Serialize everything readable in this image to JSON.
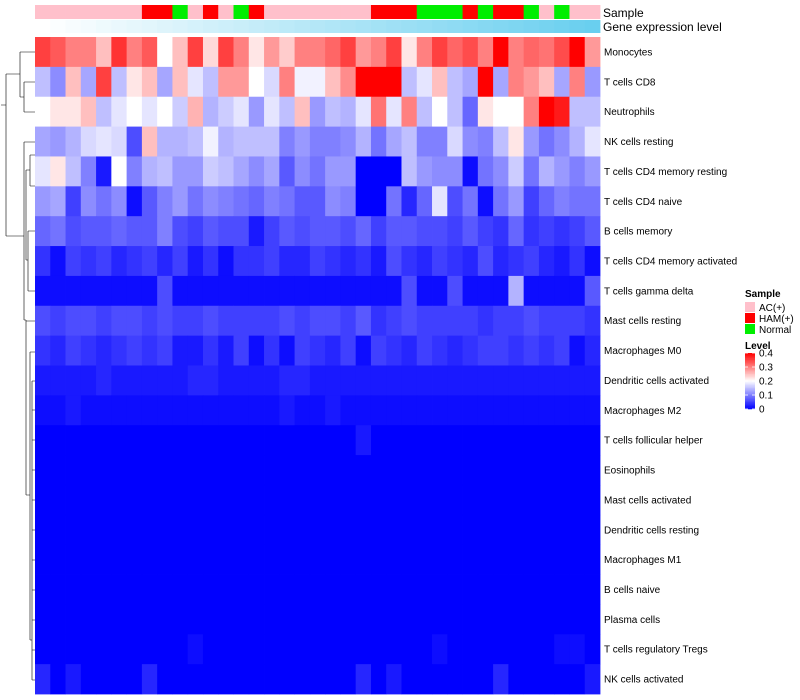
{
  "chart_data": {
    "type": "heatmap",
    "annotation_tracks": [
      "Sample",
      "Gene expression level"
    ],
    "samples": [
      "AC(+)",
      "AC(+)",
      "AC(+)",
      "AC(+)",
      "AC(+)",
      "AC(+)",
      "AC(+)",
      "HAM(+)",
      "HAM(+)",
      "Normal",
      "AC(+)",
      "HAM(+)",
      "AC(+)",
      "Normal",
      "HAM(+)",
      "AC(+)",
      "AC(+)",
      "AC(+)",
      "AC(+)",
      "AC(+)",
      "AC(+)",
      "AC(+)",
      "HAM(+)",
      "HAM(+)",
      "HAM(+)",
      "Normal",
      "Normal",
      "Normal",
      "HAM(+)",
      "Normal",
      "HAM(+)",
      "HAM(+)",
      "Normal",
      "AC(+)",
      "Normal",
      "AC(+)",
      "AC(+)"
    ],
    "rows": [
      "Monocytes",
      "T cells CD8",
      "Neutrophils",
      "NK cells resting",
      "T cells CD4 memory resting",
      "T cells CD4 naive",
      "B cells memory",
      "T cells CD4 memory activated",
      "T cells gamma delta",
      "Mast cells resting",
      "Macrophages M0",
      "Dendritic cells activated",
      "Macrophages M2",
      "T cells follicular helper",
      "Eosinophils",
      "Mast cells activated",
      "Dendritic cells resting",
      "Macrophages M1",
      "B cells naive",
      "Plasma cells",
      "T cells regulatory  Tregs",
      "NK cells activated"
    ],
    "values": [
      [
        0.35,
        0.33,
        0.3,
        0.3,
        0.25,
        0.36,
        0.3,
        0.33,
        0.2,
        0.25,
        0.35,
        0.23,
        0.35,
        0.3,
        0.22,
        0.28,
        0.24,
        0.3,
        0.3,
        0.32,
        0.35,
        0.28,
        0.3,
        0.35,
        0.22,
        0.3,
        0.35,
        0.32,
        0.34,
        0.3,
        0.4,
        0.3,
        0.32,
        0.31,
        0.34,
        0.4,
        0.28
      ],
      [
        0.15,
        0.11,
        0.25,
        0.13,
        0.35,
        0.15,
        0.22,
        0.25,
        0.13,
        0.25,
        0.18,
        0.15,
        0.28,
        0.28,
        0.2,
        0.17,
        0.3,
        0.19,
        0.19,
        0.25,
        0.29,
        0.4,
        0.4,
        0.4,
        0.15,
        0.18,
        0.25,
        0.15,
        0.13,
        0.4,
        0.13,
        0.3,
        0.28,
        0.25,
        0.13,
        0.3,
        0.12
      ],
      [
        0.2,
        0.22,
        0.22,
        0.25,
        0.15,
        0.18,
        0.2,
        0.18,
        0.2,
        0.16,
        0.26,
        0.14,
        0.16,
        0.18,
        0.12,
        0.18,
        0.15,
        0.25,
        0.12,
        0.15,
        0.14,
        0.18,
        0.31,
        0.18,
        0.3,
        0.15,
        0.2,
        0.15,
        0.08,
        0.22,
        0.2,
        0.2,
        0.3,
        0.4,
        0.38,
        0.15,
        0.15
      ],
      [
        0.13,
        0.12,
        0.14,
        0.17,
        0.18,
        0.17,
        0.06,
        0.25,
        0.14,
        0.14,
        0.15,
        0.19,
        0.14,
        0.15,
        0.15,
        0.15,
        0.1,
        0.12,
        0.1,
        0.1,
        0.11,
        0.14,
        0.09,
        0.13,
        0.15,
        0.1,
        0.1,
        0.17,
        0.11,
        0.1,
        0.15,
        0.22,
        0.12,
        0.09,
        0.11,
        0.14,
        0.18
      ],
      [
        0.18,
        0.22,
        0.15,
        0.1,
        0.02,
        0.2,
        0.1,
        0.14,
        0.15,
        0.12,
        0.12,
        0.16,
        0.15,
        0.13,
        0.11,
        0.13,
        0.07,
        0.11,
        0.09,
        0.12,
        0.12,
        0.0,
        0.0,
        0.0,
        0.15,
        0.12,
        0.11,
        0.11,
        0.01,
        0.09,
        0.11,
        0.16,
        0.09,
        0.14,
        0.12,
        0.1,
        0.12
      ],
      [
        0.12,
        0.13,
        0.05,
        0.11,
        0.09,
        0.11,
        0.01,
        0.07,
        0.1,
        0.12,
        0.09,
        0.11,
        0.1,
        0.09,
        0.08,
        0.1,
        0.09,
        0.07,
        0.07,
        0.11,
        0.1,
        0.0,
        0.0,
        0.09,
        0.03,
        0.08,
        0.18,
        0.06,
        0.09,
        0.01,
        0.09,
        0.12,
        0.05,
        0.08,
        0.1,
        0.09,
        0.09
      ],
      [
        0.08,
        0.09,
        0.06,
        0.07,
        0.07,
        0.08,
        0.07,
        0.07,
        0.1,
        0.06,
        0.05,
        0.07,
        0.06,
        0.06,
        0.02,
        0.05,
        0.07,
        0.06,
        0.07,
        0.07,
        0.06,
        0.08,
        0.05,
        0.07,
        0.07,
        0.06,
        0.06,
        0.05,
        0.07,
        0.05,
        0.04,
        0.08,
        0.04,
        0.05,
        0.04,
        0.05,
        0.07
      ],
      [
        0.04,
        0.01,
        0.05,
        0.04,
        0.05,
        0.03,
        0.04,
        0.05,
        0.03,
        0.05,
        0.02,
        0.04,
        0.01,
        0.04,
        0.04,
        0.05,
        0.03,
        0.03,
        0.05,
        0.04,
        0.03,
        0.04,
        0.02,
        0.06,
        0.04,
        0.03,
        0.05,
        0.04,
        0.03,
        0.06,
        0.03,
        0.04,
        0.05,
        0.03,
        0.02,
        0.04,
        0.01
      ],
      [
        0.01,
        0.01,
        0.01,
        0.01,
        0.01,
        0.01,
        0.01,
        0.01,
        0.06,
        0.01,
        0.01,
        0.01,
        0.01,
        0.01,
        0.01,
        0.01,
        0.01,
        0.01,
        0.01,
        0.01,
        0.01,
        0.01,
        0.01,
        0.01,
        0.06,
        0.01,
        0.01,
        0.06,
        0.01,
        0.01,
        0.01,
        0.14,
        0.01,
        0.01,
        0.01,
        0.01,
        0.07
      ],
      [
        0.06,
        0.05,
        0.06,
        0.06,
        0.05,
        0.06,
        0.06,
        0.05,
        0.06,
        0.05,
        0.05,
        0.06,
        0.05,
        0.05,
        0.05,
        0.05,
        0.06,
        0.05,
        0.06,
        0.06,
        0.05,
        0.07,
        0.04,
        0.05,
        0.06,
        0.05,
        0.05,
        0.05,
        0.05,
        0.04,
        0.05,
        0.05,
        0.06,
        0.05,
        0.05,
        0.05,
        0.04
      ],
      [
        0.04,
        0.03,
        0.05,
        0.04,
        0.03,
        0.04,
        0.05,
        0.04,
        0.05,
        0.02,
        0.02,
        0.04,
        0.02,
        0.05,
        0.01,
        0.04,
        0.01,
        0.05,
        0.04,
        0.03,
        0.05,
        0.01,
        0.05,
        0.04,
        0.03,
        0.05,
        0.04,
        0.03,
        0.04,
        0.05,
        0.05,
        0.04,
        0.05,
        0.04,
        0.05,
        0.01,
        0.03
      ],
      [
        0.02,
        0.02,
        0.02,
        0.02,
        0.03,
        0.02,
        0.02,
        0.02,
        0.02,
        0.02,
        0.03,
        0.03,
        0.02,
        0.02,
        0.02,
        0.02,
        0.03,
        0.03,
        0.02,
        0.02,
        0.02,
        0.02,
        0.02,
        0.02,
        0.02,
        0.02,
        0.02,
        0.02,
        0.02,
        0.02,
        0.02,
        0.02,
        0.02,
        0.02,
        0.02,
        0.02,
        0.02
      ],
      [
        0.01,
        0.01,
        0.02,
        0.01,
        0.01,
        0.01,
        0.01,
        0.01,
        0.01,
        0.01,
        0.01,
        0.01,
        0.01,
        0.01,
        0.01,
        0.01,
        0.02,
        0.01,
        0.01,
        0.02,
        0.01,
        0.01,
        0.01,
        0.01,
        0.01,
        0.01,
        0.01,
        0.01,
        0.01,
        0.01,
        0.01,
        0.01,
        0.01,
        0.01,
        0.01,
        0.01,
        0.01
      ],
      [
        0.0,
        0.0,
        0.0,
        0.0,
        0.0,
        0.0,
        0.0,
        0.0,
        0.0,
        0.0,
        0.0,
        0.0,
        0.0,
        0.0,
        0.0,
        0.0,
        0.0,
        0.0,
        0.0,
        0.0,
        0.0,
        0.02,
        0.0,
        0.0,
        0.0,
        0.0,
        0.0,
        0.0,
        0.0,
        0.0,
        0.0,
        0.0,
        0.0,
        0.0,
        0.0,
        0.0,
        0.0
      ],
      [
        0.0,
        0.0,
        0.0,
        0.0,
        0.0,
        0.0,
        0.0,
        0.0,
        0.0,
        0.0,
        0.0,
        0.0,
        0.0,
        0.0,
        0.0,
        0.0,
        0.0,
        0.0,
        0.0,
        0.0,
        0.0,
        0.0,
        0.0,
        0.0,
        0.0,
        0.0,
        0.0,
        0.0,
        0.0,
        0.0,
        0.0,
        0.0,
        0.0,
        0.0,
        0.0,
        0.0,
        0.0
      ],
      [
        0.0,
        0.0,
        0.0,
        0.0,
        0.0,
        0.0,
        0.0,
        0.0,
        0.0,
        0.0,
        0.0,
        0.0,
        0.0,
        0.0,
        0.0,
        0.0,
        0.0,
        0.0,
        0.0,
        0.0,
        0.0,
        0.0,
        0.0,
        0.0,
        0.0,
        0.0,
        0.0,
        0.0,
        0.0,
        0.0,
        0.0,
        0.0,
        0.0,
        0.0,
        0.0,
        0.0,
        0.0
      ],
      [
        0.0,
        0.0,
        0.0,
        0.0,
        0.0,
        0.0,
        0.0,
        0.0,
        0.0,
        0.0,
        0.0,
        0.0,
        0.0,
        0.0,
        0.0,
        0.0,
        0.0,
        0.0,
        0.0,
        0.0,
        0.0,
        0.0,
        0.0,
        0.0,
        0.0,
        0.0,
        0.0,
        0.0,
        0.0,
        0.0,
        0.0,
        0.0,
        0.0,
        0.0,
        0.0,
        0.0,
        0.0
      ],
      [
        0.0,
        0.0,
        0.0,
        0.0,
        0.0,
        0.0,
        0.0,
        0.0,
        0.0,
        0.0,
        0.0,
        0.0,
        0.0,
        0.0,
        0.0,
        0.0,
        0.0,
        0.0,
        0.0,
        0.0,
        0.0,
        0.0,
        0.0,
        0.0,
        0.0,
        0.0,
        0.0,
        0.0,
        0.0,
        0.0,
        0.0,
        0.0,
        0.0,
        0.0,
        0.0,
        0.0,
        0.0
      ],
      [
        0.0,
        0.0,
        0.0,
        0.0,
        0.0,
        0.0,
        0.0,
        0.0,
        0.0,
        0.0,
        0.0,
        0.0,
        0.0,
        0.0,
        0.0,
        0.0,
        0.0,
        0.0,
        0.0,
        0.0,
        0.0,
        0.0,
        0.0,
        0.0,
        0.0,
        0.0,
        0.0,
        0.0,
        0.0,
        0.0,
        0.0,
        0.0,
        0.0,
        0.0,
        0.0,
        0.0,
        0.0
      ],
      [
        0.0,
        0.0,
        0.0,
        0.0,
        0.0,
        0.0,
        0.0,
        0.0,
        0.0,
        0.0,
        0.0,
        0.0,
        0.0,
        0.0,
        0.0,
        0.0,
        0.0,
        0.0,
        0.0,
        0.0,
        0.0,
        0.0,
        0.0,
        0.0,
        0.0,
        0.0,
        0.0,
        0.0,
        0.0,
        0.0,
        0.0,
        0.0,
        0.0,
        0.0,
        0.0,
        0.0,
        0.0
      ],
      [
        0.0,
        0.0,
        0.0,
        0.0,
        0.0,
        0.0,
        0.0,
        0.0,
        0.0,
        0.0,
        0.01,
        0.0,
        0.0,
        0.0,
        0.0,
        0.0,
        0.0,
        0.0,
        0.0,
        0.0,
        0.0,
        0.0,
        0.0,
        0.0,
        0.0,
        0.0,
        0.01,
        0.0,
        0.0,
        0.0,
        0.0,
        0.0,
        0.0,
        0.0,
        0.01,
        0.01,
        0.0
      ],
      [
        0.03,
        0.0,
        0.02,
        0.0,
        0.0,
        0.0,
        0.0,
        0.03,
        0.0,
        0.0,
        0.0,
        0.0,
        0.0,
        0.0,
        0.0,
        0.0,
        0.0,
        0.0,
        0.0,
        0.0,
        0.0,
        0.03,
        0.0,
        0.02,
        0.0,
        0.0,
        0.0,
        0.0,
        0.0,
        0.0,
        0.03,
        0.0,
        0.0,
        0.0,
        0.0,
        0.0,
        0.02
      ]
    ],
    "legend_sample": {
      "title": "Sample",
      "entries": [
        {
          "label": "AC(+)",
          "color": "#ffc0cb"
        },
        {
          "label": "HAM(+)",
          "color": "#ff0000"
        },
        {
          "label": "Normal",
          "color": "#00ee00"
        }
      ]
    },
    "legend_level": {
      "title": "Level",
      "ticks": [
        "0.4",
        "0.3",
        "0.2",
        "0.1",
        "0"
      ],
      "tick_values": [
        0.4,
        0.3,
        0.2,
        0.1,
        0
      ],
      "range": [
        0,
        0.4
      ]
    },
    "color_scale": {
      "low": "#0000ff",
      "mid": "#ffffff",
      "high": "#ff0000",
      "mid_value": 0.2
    },
    "expression_track_color": "#69cfef"
  }
}
